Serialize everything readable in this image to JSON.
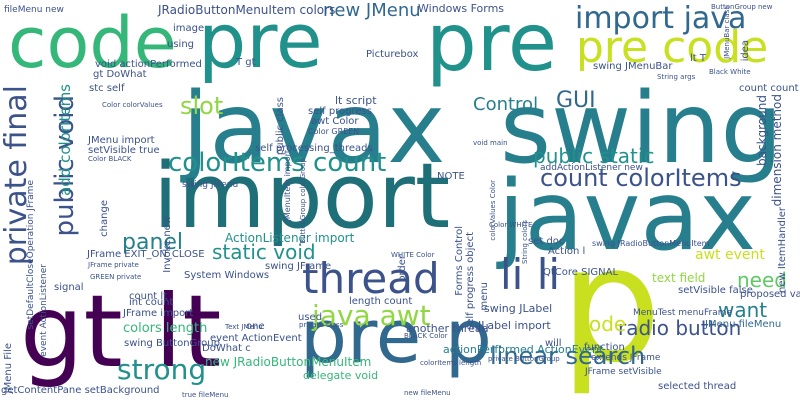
{
  "palette": {
    "dark_purple": "#440154",
    "indigo": "#3b528b",
    "blue": "#31688e",
    "teal": "#21918c",
    "teal_dark": "#277f8e",
    "green": "#35b779",
    "green_light": "#5ec962",
    "lime": "#90d743",
    "yellow": "#c8e020",
    "gold": "#fde725"
  },
  "words": {
    "javax_1": "javax",
    "swing": "swing",
    "import_1": "import",
    "javax_2": "javax",
    "p_1": "p",
    "gt_lt": "gt lt",
    "pre_1": "pre",
    "pre_2": "pre",
    "code_1": "code",
    "pre_p": "pre p",
    "pre_code": "pre code",
    "import_java": "import java",
    "thread": "thread",
    "li_li": "li li",
    "public_void": "public void",
    "private_final": "private final",
    "colorItems_count": "colorItems count",
    "count_colorItems": "count colorItems",
    "java_awt": "java awt",
    "strong": "strong",
    "linear_search": "linear search",
    "slot": "slot",
    "panel": "panel",
    "static_void": "static void",
    "public_static": "public static",
    "radio_button": "radio button",
    "new_JMenu": "new JMenu",
    "GUI": "GUI",
    "Control": "Control",
    "want": "want",
    "need": "need",
    "code_2": "code",
    "colors_length": "colors length",
    "JRadioButtonMenuItem_colors": "JRadioButtonMenuItem colors",
    "Windows_Forms": "Windows Forms",
    "ActionListener_import": "ActionListener import",
    "new_JRadioButtonMenuItem": "new JRadioButtonMenuItem",
    "event_ActionEvent": "event ActionEvent",
    "actionPerformed_ActionEvent": "actionPerformed ActionEvent",
    "delegate_void": "delegate void",
    "self_processing_threads": "self processing_threads",
    "JFrame_EXIT_ON_CLOSE": "JFrame EXIT_ON_CLOSE",
    "getContentPane_setBackground": "getContentPane setBackground",
    "awt_event": "awt event",
    "text_field": "text field",
    "setVisible_false": "setVisible false",
    "proposed_value": "proposed value",
    "selected_thread": "selected thread",
    "JMenu_fileMenu": "JMenu fileMenu",
    "another_thread": "another thread",
    "JLabel_import": "JLabel import",
    "swing_JLabel": "swing JLabel",
    "QtCore_SIGNAL": "QtCore SIGNAL",
    "Action_l": "Action l",
    "set_doc": "set doc",
    "self_progress_object": "self progress object",
    "length_count": "length count",
    "lt_script": "lt script",
    "self_progress": "self progress",
    "awt_Color": "awt Color",
    "void_actionPerformed": "void actionPerformed",
    "gt_DoWhat": "gt DoWhat",
    "stc_self": "stc self",
    "add_colorItems": "add colorItems",
    "JMenu_import": "JMenu import",
    "setVisible_true": "setVisible true",
    "swing_JMenuBar": "swing JMenuBar",
    "System_Windows": "System Windows",
    "swing_ButtonGroup": "swing ButtonGroup",
    "swing_JFrame": "swing JFrame",
    "JFrame_import": "JFrame import",
    "Invoke_new": "Invoke new",
    "count_lt": "count lt",
    "int_count": "int count",
    "DoWhat_c": "DoWhat c",
    "NOTE": "NOTE",
    "Forms_Control": "Forms Control",
    "Picturebox": "Picturebox",
    "T_gt": "T gt",
    "lt_T": "lt T",
    "using": "using",
    "image": "image",
    "count_count": "count count",
    "background": "background",
    "dimension_method": "dimension method",
    "new_ItemHandler": "new ItemHandler",
    "private_ItemHandler": "private ItemHandler",
    "function": "function",
    "used": "used",
    "signal": "signal",
    "will": "will",
    "one": "one",
    "menu": "menu",
    "order": "order",
    "Color_GREEN": "Color GREEN",
    "JMenuItem_import": "JMenuItem import",
    "MenuTest_menuFrame": "MenuTest menuFrame",
    "swing_JRadioButtonMenuItem": "swing JRadioButtonMenuItem",
    "addActionListener_new": "addActionListener new",
    "fileMenu_new": "fileMenu new",
    "length_colorsFileMenu": "length colorsFileMenu",
    "new_ButtonGroup": "new ButtonGroup",
    "public_class": "public class",
    "idea": "idea",
    "JMenuBar_class": "JMenuBar class",
    "Color_colorValues": "Color colorValues",
    "count_count_2": "count count",
    "MenuTest_new": "MenuTest new",
    "Color_BLACK": "Color BLACK",
    "ButtonGroup_colorGroup": "ButtonGroup colorGroup",
    "Color_WHITE": "Color WHITE",
    "setSelected_true": "setSelected true",
    "JFrame_private": "JFrame private",
    "JMenu_File": "JMenu File",
    "event_ActionListener": "event ActionListener",
    "setDefaultCloseOperation_JFrame": "setDefaultCloseOperation JFrame",
    "change": "change",
    "GREEN_private": "GREEN private",
    "Text_JMenu": "Text JMenu",
    "private_class": "private class",
    "swing_JMenu": "swing JMenu",
    "super_Menu": "super Menu",
    "args_MenuTest": "args MenuTest",
    "JMenuBar_new": "JMenuBar new",
    "String_args": "String args",
    "Black_White": "Black White",
    "void_main": "void main",
    "bar_new": "bar new",
    "ButtonGroup_new": "ButtonGroup new",
    "Color_new": "Color new",
    "fileMenu_add": "fileMenu add",
    "colorItems_length": "colorItems length",
    "true_fileMenu": "true fileMenu",
    "BLACK_Color": "BLACK Color",
    "private_ButtonGroup": "private ButtonGroup",
    "mnemonics_new": "mnemonics new",
    "extends_JFrame": "extends JFrame",
    "JFrame_setVisible": "JFrame setVisible",
    "WHITE_Color": "WHITE Color",
    "colorValues_Color": "colorValues Color",
    "String_colors": "String colors",
    "item_import": "item import",
    "new_fileMenu": "new fileMenu"
  }
}
